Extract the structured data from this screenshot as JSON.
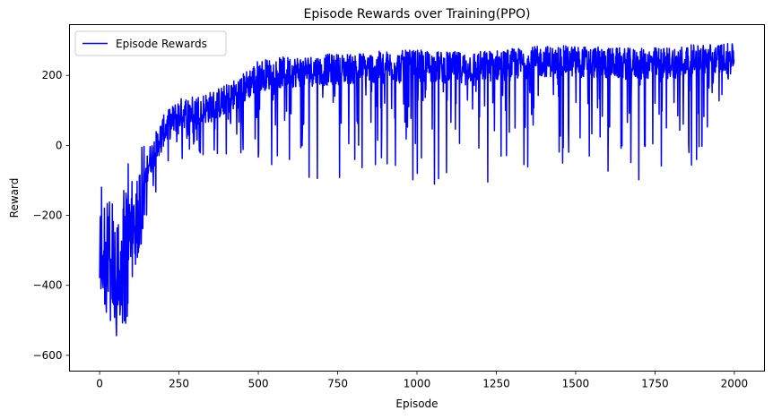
{
  "chart_data": {
    "type": "line",
    "title": "Episode Rewards over Training(PPO)",
    "xlabel": "Episode",
    "ylabel": "Reward",
    "xlim": [
      -95,
      2095
    ],
    "ylim": [
      -645,
      345
    ],
    "xticks": [
      0,
      250,
      500,
      750,
      1000,
      1250,
      1500,
      1750,
      2000
    ],
    "xtick_labels": [
      "0",
      "250",
      "500",
      "750",
      "1000",
      "1250",
      "1500",
      "1750",
      "2000"
    ],
    "yticks": [
      -600,
      -400,
      -200,
      0,
      200
    ],
    "ytick_labels": [
      "−600",
      "−400",
      "−200",
      "0",
      "200"
    ],
    "grid": false,
    "legend_position": "upper-left",
    "series": [
      {
        "name": "Episode Rewards",
        "color": "#0000ff",
        "n_episodes": 2000,
        "trend_points": [
          [
            0,
            -330
          ],
          [
            25,
            -360
          ],
          [
            50,
            -320
          ],
          [
            75,
            -260
          ],
          [
            100,
            -170
          ],
          [
            150,
            -60
          ],
          [
            200,
            40
          ],
          [
            250,
            90
          ],
          [
            300,
            100
          ],
          [
            350,
            110
          ],
          [
            400,
            130
          ],
          [
            450,
            160
          ],
          [
            500,
            200
          ],
          [
            600,
            210
          ],
          [
            700,
            215
          ],
          [
            800,
            220
          ],
          [
            900,
            225
          ],
          [
            1000,
            228
          ],
          [
            1100,
            222
          ],
          [
            1200,
            225
          ],
          [
            1300,
            232
          ],
          [
            1400,
            240
          ],
          [
            1500,
            240
          ],
          [
            1600,
            235
          ],
          [
            1700,
            232
          ],
          [
            1800,
            238
          ],
          [
            1900,
            245
          ],
          [
            2000,
            255
          ]
        ],
        "upper_envelope": [
          [
            0,
            -30
          ],
          [
            50,
            -40
          ],
          [
            100,
            50
          ],
          [
            200,
            150
          ],
          [
            300,
            150
          ],
          [
            400,
            180
          ],
          [
            500,
            265
          ],
          [
            700,
            275
          ],
          [
            1000,
            290
          ],
          [
            1300,
            295
          ],
          [
            1500,
            305
          ],
          [
            1800,
            300
          ],
          [
            2000,
            290
          ]
        ],
        "lower_envelope": [
          [
            0,
            -515
          ],
          [
            50,
            -555
          ],
          [
            75,
            -595
          ],
          [
            100,
            -400
          ],
          [
            150,
            -215
          ],
          [
            200,
            -100
          ],
          [
            300,
            -30
          ],
          [
            400,
            -30
          ],
          [
            500,
            -50
          ],
          [
            600,
            -100
          ],
          [
            800,
            -90
          ],
          [
            1000,
            -100
          ],
          [
            1150,
            -140
          ],
          [
            1220,
            -155
          ],
          [
            1400,
            -50
          ],
          [
            1500,
            -60
          ],
          [
            1700,
            -115
          ],
          [
            1900,
            -45
          ],
          [
            2000,
            230
          ]
        ]
      }
    ]
  }
}
